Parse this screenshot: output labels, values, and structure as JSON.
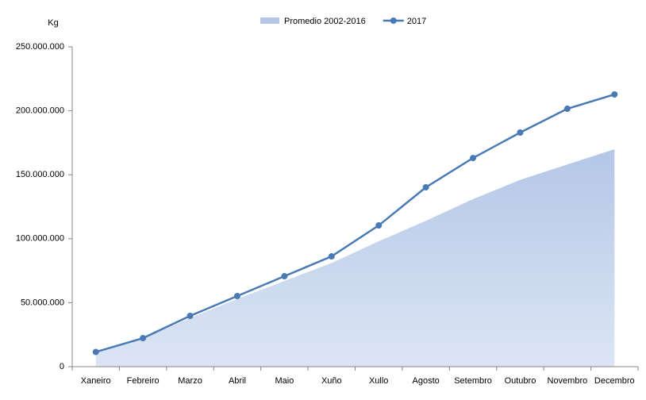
{
  "chart_data": {
    "type": "line",
    "y_label": "Kg",
    "categories": [
      "Xaneiro",
      "Febreiro",
      "Marzo",
      "Abril",
      "Maio",
      "Xuño",
      "Xullo",
      "Agosto",
      "Setembro",
      "Outubro",
      "Novembro",
      "Decembro"
    ],
    "series": [
      {
        "name": "Promedio 2002-2016",
        "kind": "area",
        "color": "#b4c7e7",
        "values": [
          11000000,
          22000000,
          38000000,
          53000000,
          67000000,
          81000000,
          98000000,
          114000000,
          131000000,
          146000000,
          158000000,
          170000000
        ]
      },
      {
        "name": "2017",
        "kind": "line",
        "color": "#4a7ab5",
        "values": [
          11500000,
          22300000,
          39700000,
          55200000,
          70700000,
          86200000,
          110400000,
          140200000,
          163100000,
          183000000,
          201600000,
          212800000
        ]
      }
    ],
    "ylim": [
      0,
      250000000
    ],
    "yticks": [
      0,
      {
        "value": 50000000,
        "label": "50.000.000"
      },
      {
        "value": 100000000,
        "label": "100.000.000"
      },
      {
        "value": 150000000,
        "label": "150.000.000"
      },
      {
        "value": 200000000,
        "label": "200.000.000"
      },
      {
        "value": 250000000,
        "label": "250.000.000"
      }
    ]
  }
}
